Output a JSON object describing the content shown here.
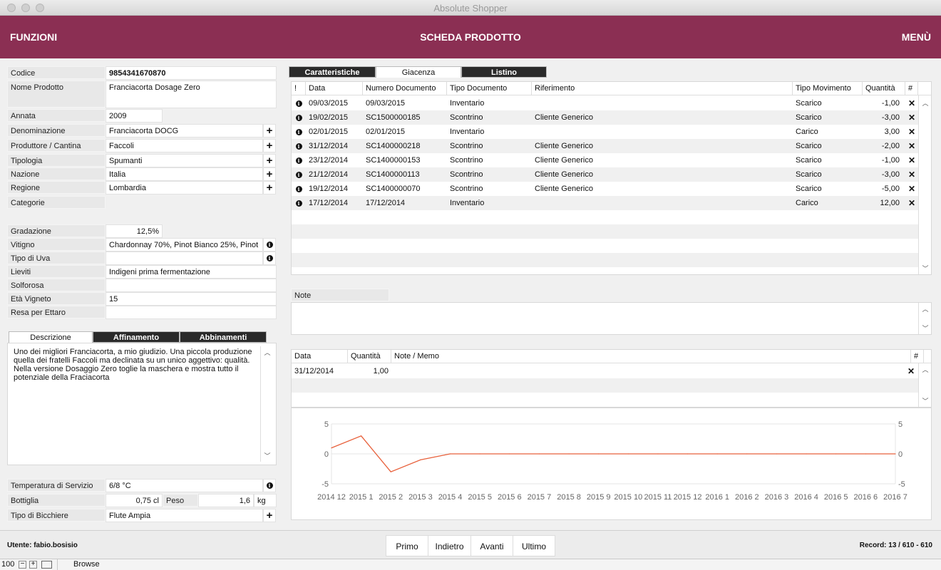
{
  "window": {
    "title": "Absolute Shopper"
  },
  "header": {
    "left": "FUNZIONI",
    "center": "SCHEDA PRODOTTO",
    "right": "MENÙ"
  },
  "fields": {
    "codice": {
      "label": "Codice",
      "value": "9854341670870"
    },
    "nome": {
      "label": "Nome Prodotto",
      "value": "Franciacorta Dosage Zero"
    },
    "annata": {
      "label": "Annata",
      "value": "2009"
    },
    "denominazione": {
      "label": "Denominazione",
      "value": "Franciacorta DOCG"
    },
    "produttore": {
      "label": "Produttore / Cantina",
      "value": "Faccoli"
    },
    "tipologia": {
      "label": "Tipologia",
      "value": "Spumanti"
    },
    "nazione": {
      "label": "Nazione",
      "value": "Italia"
    },
    "regione": {
      "label": "Regione",
      "value": "Lombardia"
    },
    "categorie": {
      "label": "Categorie",
      "value": ""
    },
    "gradazione": {
      "label": "Gradazione",
      "value": "12,5%"
    },
    "vitigno": {
      "label": "Vitigno",
      "value": "Chardonnay 70%, Pinot Bianco 25%, Pinot"
    },
    "tipo_uva": {
      "label": "Tipo di Uva",
      "value": ""
    },
    "lieviti": {
      "label": "Lieviti",
      "value": "Indigeni prima fermentazione"
    },
    "solforosa": {
      "label": "Solforosa",
      "value": ""
    },
    "eta_vigneto": {
      "label": "Età Vigneto",
      "value": "15"
    },
    "resa": {
      "label": "Resa per Ettaro",
      "value": ""
    },
    "temperatura": {
      "label": "Temperatura di Servizio",
      "value": "6/8 °C"
    },
    "bottiglia": {
      "label": "Bottiglia",
      "value": "0,75 cl"
    },
    "peso": {
      "label": "Peso",
      "value": "1,6",
      "unit": "kg"
    },
    "bicchiere": {
      "label": "Tipo di Bicchiere",
      "value": "Flute Ampia"
    }
  },
  "desc_tabs": [
    "Descrizione",
    "Affinamento",
    "Abbinamenti"
  ],
  "descrizione": "Uno dei migliori Franciacorta, a mio giudizio. Una piccola produzione quella dei fratelli Faccoli ma declinata su un unico aggettivo: qualità. Nella versione Dosaggio Zero toglie la maschera e mostra tutto il potenziale della Fraciacorta",
  "right_tabs": [
    "Caratteristiche",
    "Giacenza",
    "Listino"
  ],
  "movimenti": {
    "headers": [
      "!",
      "Data",
      "Numero Documento",
      "Tipo Documento",
      "Riferimento",
      "Tipo Movimento",
      "Quantità",
      "#"
    ],
    "rows": [
      [
        "09/03/2015",
        "09/03/2015",
        "Inventario",
        "",
        "Scarico",
        "-1,00"
      ],
      [
        "19/02/2015",
        "SC1500000185",
        "Scontrino",
        "Cliente Generico",
        "Scarico",
        "-3,00"
      ],
      [
        "02/01/2015",
        "02/01/2015",
        "Inventario",
        "",
        "Carico",
        "3,00"
      ],
      [
        "31/12/2014",
        "SC1400000218",
        "Scontrino",
        "Cliente Generico",
        "Scarico",
        "-2,00"
      ],
      [
        "23/12/2014",
        "SC1400000153",
        "Scontrino",
        "Cliente Generico",
        "Scarico",
        "-1,00"
      ],
      [
        "21/12/2014",
        "SC1400000113",
        "Scontrino",
        "Cliente Generico",
        "Scarico",
        "-3,00"
      ],
      [
        "19/12/2014",
        "SC1400000070",
        "Scontrino",
        "Cliente Generico",
        "Scarico",
        "-5,00"
      ],
      [
        "17/12/2014",
        "17/12/2014",
        "Inventario",
        "",
        "Carico",
        "12,00"
      ]
    ]
  },
  "note": {
    "label": "Note",
    "value": ""
  },
  "memo": {
    "headers": [
      "Data",
      "Quantità",
      "Note / Memo",
      "#"
    ],
    "rows": [
      [
        "31/12/2014",
        "1,00",
        ""
      ]
    ]
  },
  "chart_data": {
    "type": "line",
    "x": [
      "2014 12",
      "2015 1",
      "2015 2",
      "2015 3",
      "2015 4",
      "2015 5",
      "2015 6",
      "2015 7",
      "2015 8",
      "2015 9",
      "2015 10",
      "2015 11",
      "2015 12",
      "2016 1",
      "2016 2",
      "2016 3",
      "2016 4",
      "2016 5",
      "2016 6",
      "2016 7"
    ],
    "series": [
      {
        "values": [
          1,
          3,
          -3,
          -1,
          0,
          0,
          0,
          0,
          0,
          0,
          0,
          0,
          0,
          0,
          0,
          0,
          0,
          0,
          0,
          0
        ]
      }
    ],
    "y_ticks": [
      "5",
      "0",
      "-5"
    ],
    "ylim": [
      -5,
      5
    ],
    "line_color": "#e8613c"
  },
  "footer": {
    "user": "Utente: fabio.bosisio",
    "nav": [
      "Primo",
      "Indietro",
      "Avanti",
      "Ultimo"
    ],
    "record": "Record: 13 / 610 - 610"
  },
  "statusbar": {
    "zoom": "100",
    "mode": "Browse"
  },
  "colors": {
    "header": "#8b2f53"
  }
}
